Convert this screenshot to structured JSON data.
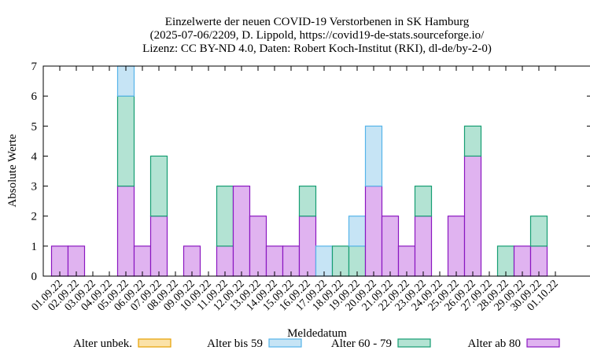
{
  "chart_data": {
    "type": "bar",
    "stacked": true,
    "title_lines": [
      "Einzelwerte der neuen COVID-19 Verstorbenen in SK Hamburg",
      "(2025-07-06/2209, D. Lippold, https://covid19-de-stats.sourceforge.io/",
      "Lizenz: CC BY-ND 4.0, Daten: Robert Koch-Institut (RKI), dl-de/by-2-0)"
    ],
    "xlabel": "Meldedatum",
    "ylabel": "Absolute Werte",
    "ylim": [
      0,
      7
    ],
    "yticks": [
      "0",
      "1",
      "2",
      "3",
      "4",
      "5",
      "6",
      "7"
    ],
    "categories": [
      "01.09.22",
      "02.09.22",
      "03.09.22",
      "04.09.22",
      "05.09.22",
      "06.09.22",
      "07.09.22",
      "08.09.22",
      "09.09.22",
      "10.09.22",
      "11.09.22",
      "12.09.22",
      "13.09.22",
      "14.09.22",
      "15.09.22",
      "16.09.22",
      "17.09.22",
      "18.09.22",
      "19.09.22",
      "20.09.22",
      "21.09.22",
      "22.09.22",
      "23.09.22",
      "24.09.22",
      "25.09.22",
      "26.09.22",
      "27.09.22",
      "28.09.22",
      "29.09.22",
      "30.09.22",
      "01.10.22"
    ],
    "series": [
      {
        "name": "Alter ab 80",
        "color": "#e0b3f0",
        "stroke": "#8a17c0",
        "values": [
          1,
          1,
          0,
          0,
          3,
          1,
          2,
          0,
          1,
          0,
          1,
          3,
          2,
          1,
          1,
          2,
          0,
          0,
          0,
          3,
          2,
          1,
          2,
          0,
          2,
          4,
          0,
          0,
          1,
          1,
          0
        ]
      },
      {
        "name": "Alter 60 - 79",
        "color": "#b3e3d3",
        "stroke": "#159d72",
        "values": [
          0,
          0,
          0,
          0,
          3,
          0,
          2,
          0,
          0,
          0,
          2,
          0,
          0,
          0,
          0,
          1,
          0,
          1,
          1,
          0,
          0,
          0,
          1,
          0,
          0,
          1,
          0,
          1,
          0,
          1,
          0
        ]
      },
      {
        "name": "Alter bis 59",
        "color": "#c6e4f5",
        "stroke": "#56b4e9",
        "values": [
          0,
          0,
          0,
          0,
          1,
          0,
          0,
          0,
          0,
          0,
          0,
          0,
          0,
          0,
          0,
          0,
          1,
          0,
          1,
          2,
          0,
          0,
          0,
          0,
          0,
          0,
          0,
          0,
          0,
          0,
          0
        ]
      },
      {
        "name": "Alter unbek.",
        "color": "#fbe2a8",
        "stroke": "#e69f00",
        "values": [
          0,
          0,
          0,
          0,
          0,
          0,
          0,
          0,
          0,
          0,
          0,
          0,
          0,
          0,
          0,
          0,
          0,
          0,
          0,
          0,
          0,
          0,
          0,
          0,
          0,
          0,
          0,
          0,
          0,
          0,
          0
        ]
      }
    ],
    "legend_order": [
      "Alter unbek.",
      "Alter bis 59",
      "Alter 60 - 79",
      "Alter ab 80"
    ],
    "legend_position": "bottom",
    "grid": false
  }
}
